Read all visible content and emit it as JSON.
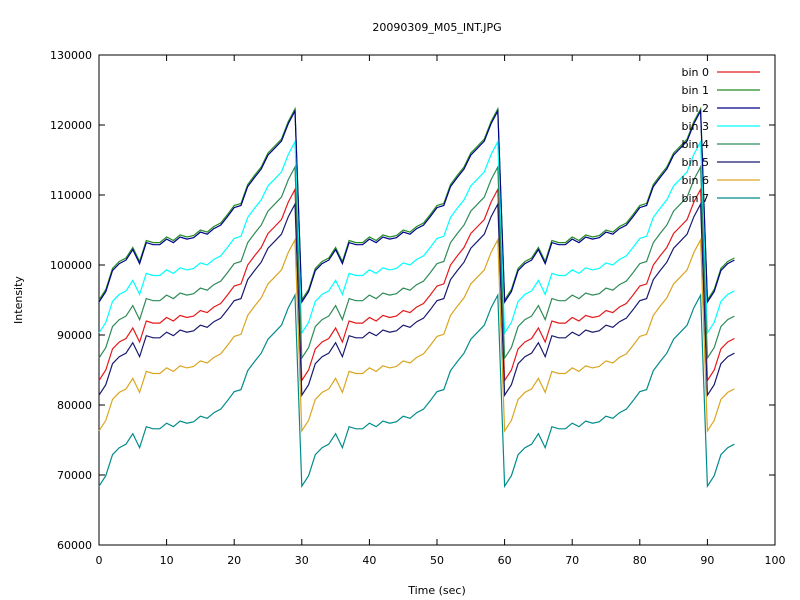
{
  "chart_data": {
    "type": "line",
    "title": "20090309_M05_INT.JPG",
    "xlabel": "Time (sec)",
    "ylabel": "Intensity",
    "xlim": [
      0,
      100
    ],
    "ylim": [
      60000,
      130000
    ],
    "xticks": [
      0,
      10,
      20,
      30,
      40,
      50,
      60,
      70,
      80,
      90,
      100
    ],
    "yticks": [
      60000,
      70000,
      80000,
      90000,
      100000,
      110000,
      120000,
      130000
    ],
    "grid": false,
    "legend": "top-right",
    "period_sec": 30,
    "x": [
      0,
      1,
      2,
      3,
      4,
      5,
      6,
      7,
      8,
      9,
      10,
      11,
      12,
      13,
      14,
      15,
      16,
      17,
      18,
      19,
      20,
      21,
      22,
      23,
      24,
      25,
      26,
      27,
      28,
      29,
      30,
      31,
      32,
      33,
      34,
      35,
      36,
      37,
      38,
      39,
      40,
      41,
      42,
      43,
      44,
      45,
      46,
      47,
      48,
      49,
      50,
      51,
      52,
      53,
      54,
      55,
      56,
      57,
      58,
      59,
      60,
      61,
      62,
      63,
      64,
      65,
      66,
      67,
      68,
      69,
      70,
      71,
      72,
      73,
      74,
      75,
      76,
      77,
      78,
      79,
      80,
      81,
      82,
      83,
      84,
      85,
      86,
      87,
      88,
      89,
      90,
      91,
      92,
      93,
      94
    ],
    "cycle_shape_bin1": [
      95000,
      96500,
      99500,
      100500,
      101000,
      102500,
      100500,
      103500,
      103200,
      103200,
      104000,
      103500,
      104300,
      104000,
      104200,
      105000,
      104700,
      105500,
      106000,
      107200,
      108500,
      108800,
      111500,
      112800,
      114000,
      116000,
      117000,
      118000,
      120500,
      122300
    ],
    "series": [
      {
        "name": "bin 0",
        "color": "#e41a1c",
        "offset": -11500
      },
      {
        "name": "bin 1",
        "color": "#228b22",
        "offset": 0
      },
      {
        "name": "bin 2",
        "color": "#00008b",
        "offset": -300
      },
      {
        "name": "bin 3",
        "color": "#00ffff",
        "offset": -4700
      },
      {
        "name": "bin 4",
        "color": "#2e8b57",
        "offset": -8300
      },
      {
        "name": "bin 5",
        "color": "#191970",
        "offset": -13600
      },
      {
        "name": "bin 6",
        "color": "#daa520",
        "offset": -18700
      },
      {
        "name": "bin 7",
        "color": "#008b8b",
        "offset": -26600
      }
    ]
  }
}
